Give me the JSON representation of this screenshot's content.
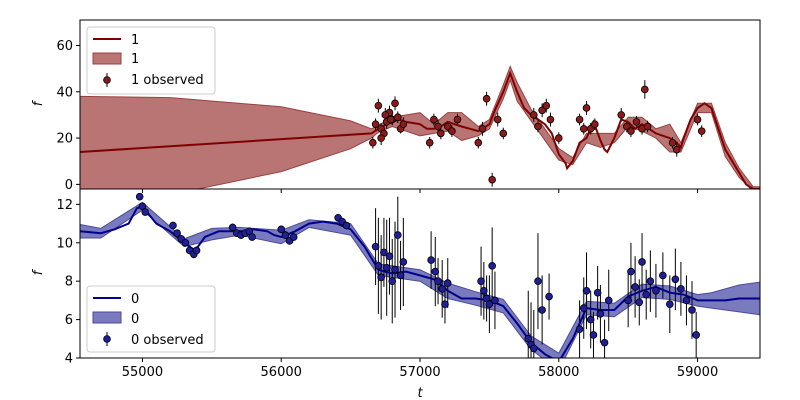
{
  "chart_data": [
    {
      "type": "line",
      "ylabel": "f",
      "xlabel": "",
      "xlim": [
        54550,
        59450
      ],
      "ylim": [
        -2,
        71
      ],
      "yticks": [
        0,
        20,
        40,
        60
      ],
      "grid": false,
      "legend_position": "upper left",
      "legend": [
        "1",
        "1",
        "1 observed"
      ],
      "colors": {
        "line": "#800000",
        "band": "#b97474",
        "band_edge": "#9c4040",
        "marker": "#8b1a1a"
      },
      "series": [
        {
          "name": "1",
          "kind": "model_line",
          "x": [
            54550,
            56650,
            56700,
            56760,
            56800,
            56850,
            56900,
            57000,
            57050,
            57100,
            57150,
            57200,
            57300,
            57420,
            57450,
            57500,
            57540,
            57600,
            57650,
            57700,
            57750,
            57800,
            57850,
            57900,
            57950,
            58000,
            58050,
            58060,
            58100,
            58150,
            58200,
            58250,
            58300,
            58330,
            58350,
            58400,
            58450,
            58500,
            58550,
            58600,
            58650,
            58700,
            58800,
            58850,
            58880,
            58900,
            58950,
            59000,
            59050,
            59100,
            59200,
            59300,
            59350,
            59400,
            59450
          ],
          "y": [
            14,
            22,
            24,
            26,
            27,
            28,
            27,
            26,
            24,
            24,
            25,
            27,
            25,
            23,
            24,
            26,
            32,
            40,
            48,
            40,
            33,
            30,
            28,
            26,
            22,
            13,
            9,
            7,
            10,
            18,
            20,
            27,
            19,
            15,
            14,
            20,
            28,
            27,
            24,
            26,
            24,
            22,
            20,
            18,
            16,
            20,
            28,
            33,
            35,
            33,
            15,
            5,
            0,
            -2,
            -2
          ]
        },
        {
          "name": "1",
          "kind": "confidence_band",
          "x": [
            54550,
            55200,
            56000,
            56500,
            56650,
            56700,
            56800,
            57000,
            57100,
            57200,
            57300,
            57420,
            57500,
            57600,
            57650,
            57700,
            57800,
            58000,
            58100,
            58200,
            58300,
            58400,
            58500,
            58600,
            58700,
            58800,
            58880,
            59000,
            59100,
            59200,
            59300,
            59400,
            59450
          ],
          "half_width": [
            24,
            21,
            14,
            6,
            2,
            1.5,
            2,
            5,
            2,
            4,
            6,
            2,
            2,
            3,
            3,
            4,
            2.5,
            2.5,
            1.5,
            2,
            3,
            2,
            2,
            3,
            2,
            6,
            2,
            2,
            2,
            3,
            2,
            1,
            1
          ]
        },
        {
          "name": "1 observed",
          "kind": "observed",
          "x": [
            56660,
            56680,
            56700,
            56720,
            56740,
            56760,
            56780,
            56800,
            56820,
            56840,
            56860,
            56880,
            56720,
            56750,
            56790,
            57070,
            57100,
            57130,
            57150,
            57200,
            57230,
            57270,
            57420,
            57450,
            57480,
            57520,
            57560,
            57600,
            57820,
            57850,
            57880,
            57910,
            57940,
            58000,
            58150,
            58180,
            58200,
            58230,
            58260,
            58450,
            58490,
            58520,
            58560,
            58600,
            58620,
            58640,
            58820,
            58850,
            59000,
            59030
          ],
          "y": [
            18,
            26,
            34,
            24,
            22,
            27,
            31,
            28,
            35,
            29,
            24,
            26,
            20,
            30,
            28,
            18,
            28,
            25,
            22,
            25,
            23,
            28,
            18,
            24,
            37,
            2,
            28,
            22,
            30,
            25,
            32,
            34,
            28,
            20,
            28,
            24,
            33,
            24,
            26,
            30,
            25,
            23,
            27,
            24,
            41,
            25,
            18,
            15,
            28,
            23
          ],
          "yerr": [
            2.5,
            2.5,
            3,
            2.5,
            2,
            3,
            3,
            2.5,
            3,
            2.5,
            2,
            3,
            3,
            3,
            2,
            2.5,
            2.5,
            3,
            2.5,
            2,
            2.5,
            2.5,
            2.5,
            3,
            3,
            3,
            3,
            2.5,
            3,
            2.5,
            3,
            3,
            3,
            2.5,
            2.5,
            2.5,
            3,
            2.5,
            2.5,
            3,
            2.5,
            2.5,
            2.5,
            2.5,
            4,
            2.5,
            2.5,
            3,
            2.5,
            2.5
          ]
        }
      ]
    },
    {
      "type": "line",
      "ylabel": "f",
      "xlabel": "t",
      "xlim": [
        54550,
        59450
      ],
      "ylim": [
        4,
        12.8
      ],
      "yticks": [
        4,
        6,
        8,
        10,
        12
      ],
      "xticks": [
        55000,
        56000,
        57000,
        58000,
        59000
      ],
      "grid": false,
      "legend_position": "lower left",
      "legend": [
        "0",
        "0",
        "0 observed"
      ],
      "colors": {
        "line": "#00008b",
        "band": "#7a7abf",
        "band_edge": "#4a4aa0",
        "marker": "#1f1f99"
      },
      "series": [
        {
          "name": "0",
          "kind": "model_line",
          "x": [
            54550,
            54700,
            54800,
            54900,
            54960,
            55000,
            55100,
            55200,
            55300,
            55380,
            55450,
            55550,
            55650,
            55750,
            55800,
            55900,
            55950,
            56000,
            56100,
            56200,
            56300,
            56400,
            56500,
            56600,
            56700,
            56800,
            56900,
            57000,
            57100,
            57200,
            57300,
            57400,
            57500,
            57600,
            57700,
            57800,
            57850,
            57900,
            58000,
            58100,
            58200,
            58300,
            58400,
            58500,
            58600,
            58700,
            58800,
            58900,
            59000,
            59100,
            59200,
            59300,
            59450
          ],
          "y": [
            10.6,
            10.5,
            10.7,
            11.0,
            11.8,
            11.9,
            11.0,
            10.6,
            10.0,
            9.6,
            10.3,
            10.6,
            10.6,
            10.6,
            10.7,
            10.6,
            10.4,
            10.3,
            10.6,
            11.0,
            11.1,
            11.0,
            10.7,
            9.8,
            8.6,
            8.4,
            8.5,
            8.3,
            8.1,
            7.5,
            7.1,
            7.1,
            7.0,
            6.7,
            5.8,
            4.8,
            4.5,
            4.2,
            3.8,
            5.0,
            6.6,
            6.5,
            6.5,
            7.2,
            7.5,
            7.7,
            7.4,
            7.3,
            7.0,
            7.0,
            7.0,
            7.1,
            7.1
          ]
        },
        {
          "name": "0",
          "kind": "confidence_band",
          "x": [
            54550,
            54700,
            55000,
            55300,
            55500,
            55700,
            56000,
            56200,
            56500,
            56700,
            57000,
            57200,
            57400,
            57600,
            57800,
            58000,
            58200,
            58400,
            58600,
            58800,
            59000,
            59100,
            59300,
            59450
          ],
          "half_width": [
            0.35,
            0.25,
            0.2,
            0.2,
            0.3,
            0.2,
            0.35,
            0.2,
            0.3,
            0.3,
            0.3,
            0.4,
            0.35,
            0.35,
            0.35,
            0.45,
            0.35,
            0.35,
            0.35,
            0.35,
            0.3,
            0.4,
            0.7,
            0.85
          ]
        },
        {
          "name": "0 observed",
          "kind": "observed",
          "x": [
            54980,
            55000,
            55020,
            55220,
            55250,
            55280,
            55310,
            55340,
            55370,
            55390,
            55650,
            55680,
            55710,
            55740,
            55770,
            55790,
            56000,
            56030,
            56060,
            56090,
            56410,
            56440,
            56470,
            56680,
            56700,
            56720,
            56740,
            56760,
            56780,
            56800,
            56820,
            56840,
            56860,
            56880,
            57080,
            57110,
            57130,
            57160,
            57180,
            57200,
            57440,
            57460,
            57480,
            57500,
            57520,
            57540,
            57780,
            57800,
            57820,
            57850,
            57880,
            57930,
            58150,
            58180,
            58200,
            58230,
            58250,
            58280,
            58300,
            58330,
            58360,
            58500,
            58520,
            58550,
            58580,
            58600,
            58630,
            58660,
            58700,
            58750,
            58800,
            58840,
            58880,
            58920,
            58960,
            58990
          ],
          "y": [
            12.4,
            11.9,
            11.6,
            10.9,
            10.5,
            10.2,
            10.0,
            9.6,
            9.4,
            9.6,
            10.8,
            10.5,
            10.4,
            10.5,
            10.6,
            10.3,
            10.7,
            10.4,
            10.1,
            10.3,
            11.3,
            11.1,
            10.9,
            9.8,
            8.8,
            8.2,
            9.5,
            8.7,
            9.3,
            8.0,
            8.6,
            10.4,
            8.3,
            9.0,
            9.1,
            8.5,
            8.0,
            7.6,
            6.8,
            7.9,
            8.0,
            7.5,
            7.1,
            6.8,
            8.8,
            7.0,
            5.0,
            4.7,
            4.5,
            8.0,
            6.5,
            7.2,
            5.5,
            6.6,
            7.5,
            6.0,
            5.2,
            7.4,
            6.3,
            4.8,
            7.0,
            7.0,
            8.5,
            7.7,
            6.9,
            9.0,
            7.3,
            8.0,
            7.5,
            8.3,
            6.8,
            8.1,
            7.6,
            7.0,
            6.5,
            5.2
          ],
          "yerr": [
            0.15,
            0.15,
            0.15,
            0.2,
            0.2,
            0.2,
            0.2,
            0.2,
            0.2,
            0.2,
            0.2,
            0.2,
            0.2,
            0.2,
            0.2,
            0.2,
            0.2,
            0.2,
            0.2,
            0.2,
            0.2,
            0.2,
            0.2,
            2.0,
            2.5,
            2.2,
            1.8,
            2.5,
            2.0,
            2.2,
            2.5,
            2.0,
            1.8,
            2.3,
            1.5,
            1.8,
            1.2,
            1.5,
            1.0,
            1.3,
            1.8,
            1.5,
            1.2,
            1.5,
            2.0,
            1.5,
            2.5,
            2.2,
            2.0,
            2.5,
            1.8,
            1.2,
            1.5,
            1.6,
            2.0,
            1.5,
            1.2,
            1.4,
            1.5,
            1.2,
            1.6,
            1.4,
            1.5,
            1.6,
            1.2,
            1.5,
            1.3,
            1.6,
            1.4,
            1.2,
            1.5,
            1.6,
            1.4,
            1.3,
            1.5,
            1.2
          ]
        }
      ]
    }
  ]
}
